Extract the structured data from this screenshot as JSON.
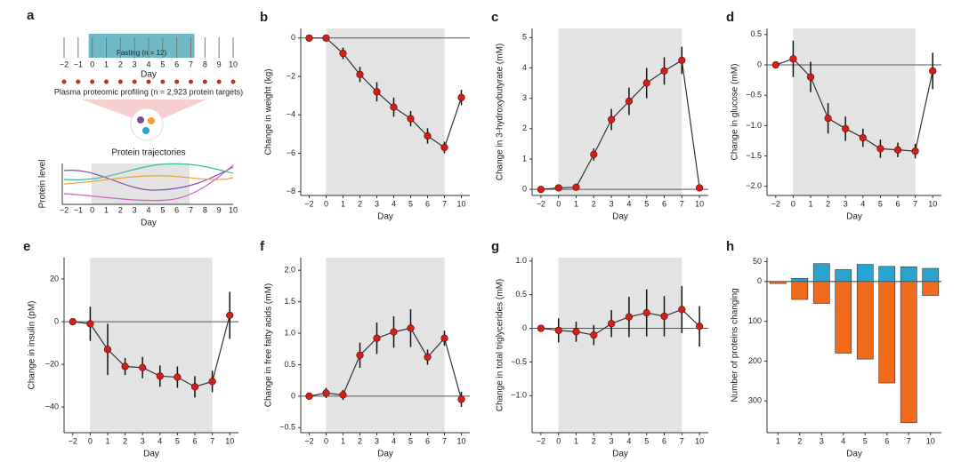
{
  "panel_a": {
    "label": "a",
    "days": [
      "−2",
      "−1",
      "0",
      "1",
      "2",
      "3",
      "4",
      "5",
      "6",
      "7",
      "8",
      "9",
      "10"
    ],
    "fasting_label": "Fasting (n = 12)",
    "day_label": "Day",
    "profiling_label": "Plasma proteomic profiling (n = 2,923 protein targets)",
    "trajectories_title": "Protein trajectories",
    "protein_level_label": "Protein level"
  },
  "chart_data": [
    {
      "type": "line",
      "label": "b",
      "x_label": "Day",
      "y_label": "Change in weight (kg)",
      "categories": [
        "−2",
        "0",
        "1",
        "2",
        "3",
        "4",
        "5",
        "6",
        "7",
        "10"
      ],
      "shaded_categories": [
        "0",
        "7"
      ],
      "zero_line": true,
      "color": "#d0201c",
      "values": [
        0,
        0,
        -0.8,
        -1.9,
        -2.8,
        -3.6,
        -4.2,
        -5.1,
        -5.7,
        -3.1
      ],
      "errors": [
        0,
        0,
        0.3,
        0.4,
        0.5,
        0.5,
        0.4,
        0.4,
        0.3,
        0.4
      ],
      "ylim": [
        -8.2,
        0.5
      ],
      "yticks": [
        0,
        {
          "value": -2,
          "label": "−2"
        },
        {
          "value": -4,
          "label": "−4"
        },
        {
          "value": -6,
          "label": "−6"
        },
        {
          "value": -8,
          "label": "−8"
        }
      ]
    },
    {
      "type": "line",
      "label": "c",
      "x_label": "Day",
      "y_label": "Change in 3-hydroxybutyrate (mM)",
      "categories": [
        "−2",
        "0",
        "1",
        "2",
        "3",
        "4",
        "5",
        "6",
        "7",
        "10"
      ],
      "shaded_categories": [
        "0",
        "7"
      ],
      "zero_line": true,
      "color": "#d0201c",
      "values": [
        0,
        0.05,
        0.07,
        1.15,
        2.3,
        2.9,
        3.5,
        3.9,
        4.25,
        0.05
      ],
      "errors": [
        0,
        0.05,
        0.05,
        0.2,
        0.35,
        0.45,
        0.5,
        0.45,
        0.45,
        0.05
      ],
      "ylim": [
        -0.2,
        5.3
      ],
      "yticks": [
        0,
        1,
        2,
        3,
        4,
        5
      ]
    },
    {
      "type": "line",
      "label": "d",
      "x_label": "Day",
      "y_label": "Change in glucose (mM)",
      "categories": [
        "−2",
        "0",
        "1",
        "2",
        "3",
        "4",
        "5",
        "6",
        "7",
        "10"
      ],
      "shaded_categories": [
        "0",
        "7"
      ],
      "zero_line": true,
      "color": "#d0201c",
      "values": [
        0,
        0.1,
        -0.2,
        -0.88,
        -1.05,
        -1.2,
        -1.38,
        -1.4,
        -1.42,
        -0.1
      ],
      "errors": [
        0,
        0.3,
        0.25,
        0.25,
        0.2,
        0.15,
        0.15,
        0.12,
        0.12,
        0.3
      ],
      "ylim": [
        -2.15,
        0.6
      ],
      "yticks": [
        0.5,
        0,
        {
          "value": -0.5,
          "label": "−0.5"
        },
        {
          "value": -1,
          "label": "−1.0"
        },
        {
          "value": -1.5,
          "label": "−1.5"
        },
        {
          "value": -2,
          "label": "−2.0"
        }
      ]
    },
    {
      "type": "line",
      "label": "e",
      "x_label": "Day",
      "y_label": "Change in insulin (pM)",
      "categories": [
        "−2",
        "0",
        "1",
        "2",
        "3",
        "4",
        "5",
        "6",
        "7",
        "10"
      ],
      "shaded_categories": [
        "0",
        "7"
      ],
      "zero_line": true,
      "color": "#d0201c",
      "values": [
        0,
        -1,
        -13,
        -21,
        -21.5,
        -25.5,
        -26,
        -30.5,
        -28,
        3
      ],
      "errors": [
        0,
        8,
        12,
        4,
        5,
        5,
        5,
        5,
        5,
        11
      ],
      "ylim": [
        -52,
        30
      ],
      "yticks": [
        20,
        0,
        {
          "value": -20,
          "label": "−20"
        },
        {
          "value": -40,
          "label": "−40"
        }
      ]
    },
    {
      "type": "line",
      "label": "f",
      "x_label": "Day",
      "y_label": "Change in free fatty acids (mM)",
      "categories": [
        "−2",
        "0",
        "1",
        "2",
        "3",
        "4",
        "5",
        "6",
        "7",
        "10"
      ],
      "shaded_categories": [
        "0",
        "7"
      ],
      "zero_line": true,
      "color": "#d0201c",
      "values": [
        0,
        0.05,
        0.02,
        0.65,
        0.92,
        1.02,
        1.08,
        0.62,
        0.92,
        -0.05
      ],
      "errors": [
        0,
        0.08,
        0.08,
        0.2,
        0.25,
        0.25,
        0.3,
        0.12,
        0.12,
        0.12
      ],
      "ylim": [
        -0.58,
        2.2
      ],
      "yticks": [
        {
          "value": -0.5,
          "label": "−0.5"
        },
        0,
        0.5,
        {
          "value": 1,
          "label": "1.0"
        },
        1.5,
        {
          "value": 2,
          "label": "2.0"
        }
      ]
    },
    {
      "type": "line",
      "label": "g",
      "x_label": "Day",
      "y_label": "Change in total triglycerides (mM)",
      "categories": [
        "−2",
        "0",
        "1",
        "2",
        "3",
        "4",
        "5",
        "6",
        "7",
        "10"
      ],
      "shaded_categories": [
        "0",
        "7"
      ],
      "zero_line": true,
      "color": "#d0201c",
      "values": [
        0,
        -0.03,
        -0.05,
        -0.1,
        0.07,
        0.17,
        0.23,
        0.18,
        0.28,
        0.03
      ],
      "errors": [
        0,
        0.18,
        0.15,
        0.15,
        0.2,
        0.3,
        0.35,
        0.3,
        0.35,
        0.3
      ],
      "ylim": [
        -1.55,
        1.05
      ],
      "yticks": [
        {
          "value": 1,
          "label": "1.0"
        },
        0.5,
        0,
        {
          "value": -0.5,
          "label": "−0.5"
        },
        {
          "value": -1,
          "label": "−1.0"
        }
      ]
    },
    {
      "type": "bar",
      "label": "h",
      "x_label": "Day",
      "y_label": "Number of proteins changing",
      "categories": [
        "1",
        "2",
        "3",
        "4",
        "5",
        "6",
        "7",
        "10"
      ],
      "series": [
        {
          "color": "#2aa4cf",
          "values": [
            0,
            8,
            45,
            30,
            43,
            38,
            37,
            33
          ]
        },
        {
          "color": "#f26a1b",
          "values": [
            -5,
            -45,
            -55,
            -180,
            -195,
            -255,
            -355,
            -35
          ]
        }
      ],
      "ylim": [
        -380,
        60
      ],
      "yticks": [
        50,
        0,
        {
          "value": -100,
          "label": "100"
        },
        {
          "value": -200,
          "label": "200"
        },
        {
          "value": -300,
          "label": "300"
        }
      ]
    }
  ]
}
